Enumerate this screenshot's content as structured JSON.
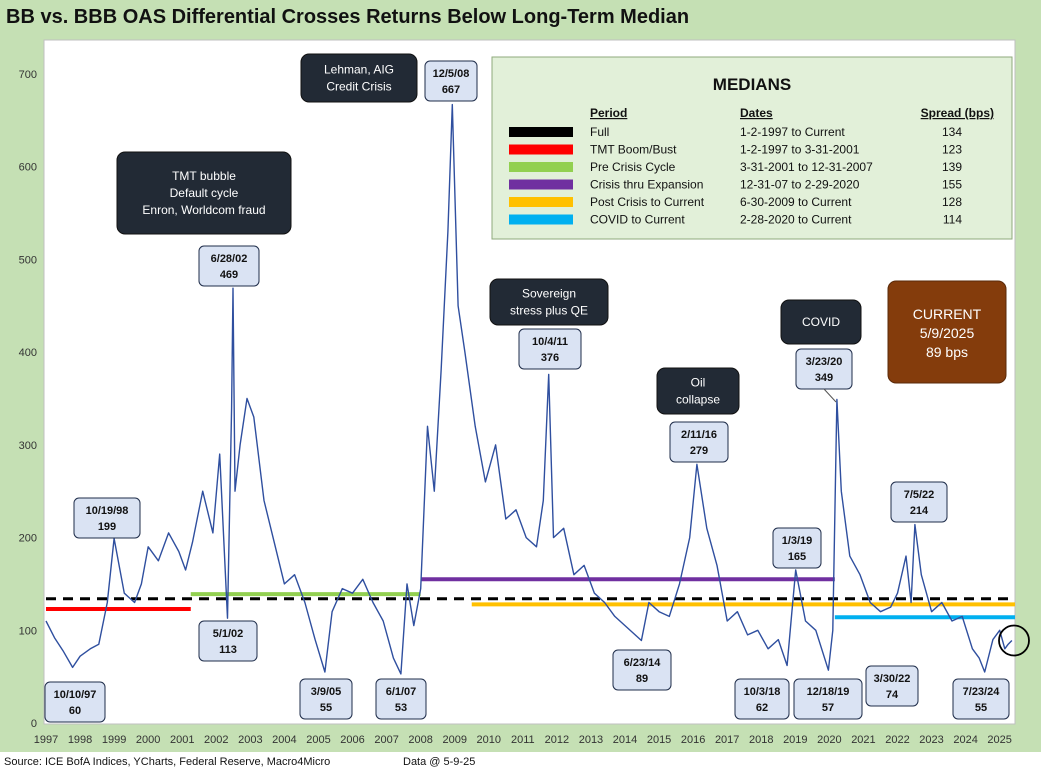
{
  "title": "BB vs. BBB OAS Differential Crosses Returns Below Long-Term Median",
  "footer": {
    "source": "Source: ICE BofA Indices, YCharts, Federal Reserve, Macro4Micro",
    "data_at": "Data @ 5-9-25"
  },
  "medians_box": {
    "title": "MEDIANS",
    "headers": {
      "period": "Period",
      "dates": "Dates",
      "spread": "Spread (bps)"
    },
    "rows": [
      {
        "color": "#000000",
        "dashed": true,
        "period": "Full",
        "dates": "1-2-1997 to Current",
        "spread": "134"
      },
      {
        "color": "#ff0000",
        "dashed": false,
        "period": "TMT Boom/Bust",
        "dates": "1-2-1997 to 3-31-2001",
        "spread": "123"
      },
      {
        "color": "#92d050",
        "dashed": false,
        "period": "Pre Crisis Cycle",
        "dates": "3-31-2001 to 12-31-2007",
        "spread": "139"
      },
      {
        "color": "#7030a0",
        "dashed": false,
        "period": "Crisis thru Expansion",
        "dates": "12-31-07 to 2-29-2020",
        "spread": "155"
      },
      {
        "color": "#ffc000",
        "dashed": false,
        "period": "Post Crisis to Current",
        "dates": "6-30-2009 to Current",
        "spread": "128"
      },
      {
        "color": "#00b0f0",
        "dashed": false,
        "period": "COVID to Current",
        "dates": "2-28-2020 to Current",
        "spread": "114"
      }
    ]
  },
  "current_box": {
    "lines": [
      "CURRENT",
      "5/9/2025",
      "89 bps"
    ],
    "color": "#843c0c"
  },
  "event_boxes": [
    {
      "id": "tmt",
      "lines": [
        "TMT bubble",
        "Default cycle",
        "Enron, Worldcom fraud"
      ]
    },
    {
      "id": "lehman",
      "lines": [
        "Lehman, AIG",
        "Credit Crisis"
      ]
    },
    {
      "id": "sovereign",
      "lines": [
        "Sovereign",
        "stress plus QE"
      ]
    },
    {
      "id": "oil",
      "lines": [
        "Oil",
        "collapse"
      ]
    },
    {
      "id": "covid",
      "lines": [
        "COVID"
      ]
    }
  ],
  "callouts": [
    {
      "date": "10/10/97",
      "value": "60"
    },
    {
      "date": "10/19/98",
      "value": "199"
    },
    {
      "date": "6/28/02",
      "value": "469"
    },
    {
      "date": "5/1/02",
      "value": "113"
    },
    {
      "date": "3/9/05",
      "value": "55"
    },
    {
      "date": "6/1/07",
      "value": "53"
    },
    {
      "date": "12/5/08",
      "value": "667"
    },
    {
      "date": "10/4/11",
      "value": "376"
    },
    {
      "date": "6/23/14",
      "value": "89"
    },
    {
      "date": "2/11/16",
      "value": "279"
    },
    {
      "date": "10/3/18",
      "value": "62"
    },
    {
      "date": "1/3/19",
      "value": "165"
    },
    {
      "date": "12/18/19",
      "value": "57"
    },
    {
      "date": "3/23/20",
      "value": "349"
    },
    {
      "date": "3/30/22",
      "value": "74"
    },
    {
      "date": "7/5/22",
      "value": "214"
    },
    {
      "date": "7/23/24",
      "value": "55"
    }
  ],
  "chart_data": {
    "type": "line",
    "title": "BB vs. BBB OAS Differential Crosses Returns Below Long-Term Median",
    "xlabel": "",
    "ylabel": "",
    "xlim": [
      1997.0,
      2025.45
    ],
    "ylim": [
      0,
      700
    ],
    "y_ticks": [
      0,
      100,
      200,
      300,
      400,
      500,
      600,
      700
    ],
    "x_ticks": [
      "1997",
      "1998",
      "1999",
      "2000",
      "2001",
      "2002",
      "2003",
      "2004",
      "2005",
      "2006",
      "2007",
      "2008",
      "2009",
      "2010",
      "2011",
      "2012",
      "2013",
      "2014",
      "2015",
      "2016",
      "2017",
      "2018",
      "2019",
      "2020",
      "2021",
      "2022",
      "2023",
      "2024",
      "2025"
    ],
    "grid": false,
    "series": [
      {
        "line_color": "#2f4f9f",
        "x": [
          1997.0,
          1997.25,
          1997.5,
          1997.78,
          1998.0,
          1998.3,
          1998.55,
          1998.8,
          1999.0,
          1999.3,
          1999.6,
          1999.8,
          2000.0,
          2000.3,
          2000.6,
          2000.9,
          2001.1,
          2001.3,
          2001.6,
          2001.9,
          2002.1,
          2002.33,
          2002.45,
          2002.49,
          2002.55,
          2002.7,
          2002.9,
          2003.1,
          2003.4,
          2003.7,
          2004.0,
          2004.3,
          2004.6,
          2004.9,
          2005.19,
          2005.4,
          2005.7,
          2006.0,
          2006.3,
          2006.6,
          2006.9,
          2007.2,
          2007.42,
          2007.6,
          2007.8,
          2008.0,
          2008.2,
          2008.4,
          2008.6,
          2008.8,
          2008.93,
          2009.1,
          2009.3,
          2009.6,
          2009.9,
          2010.2,
          2010.5,
          2010.8,
          2011.1,
          2011.4,
          2011.6,
          2011.76,
          2011.9,
          2012.2,
          2012.5,
          2012.8,
          2013.1,
          2013.4,
          2013.7,
          2014.0,
          2014.3,
          2014.48,
          2014.7,
          2015.0,
          2015.3,
          2015.6,
          2015.9,
          2016.11,
          2016.4,
          2016.7,
          2017.0,
          2017.3,
          2017.6,
          2017.9,
          2018.2,
          2018.5,
          2018.76,
          2018.9,
          2019.01,
          2019.3,
          2019.6,
          2019.97,
          2020.1,
          2020.22,
          2020.35,
          2020.6,
          2020.9,
          2021.2,
          2021.5,
          2021.8,
          2022.0,
          2022.25,
          2022.4,
          2022.51,
          2022.7,
          2023.0,
          2023.3,
          2023.6,
          2023.9,
          2024.2,
          2024.4,
          2024.56,
          2024.8,
          2025.0,
          2025.15,
          2025.25,
          2025.36
        ],
        "values": [
          110,
          92,
          78,
          60,
          72,
          80,
          85,
          130,
          199,
          140,
          130,
          150,
          190,
          175,
          205,
          185,
          165,
          195,
          250,
          205,
          290,
          113,
          340,
          469,
          250,
          300,
          350,
          330,
          240,
          195,
          150,
          160,
          130,
          90,
          55,
          120,
          145,
          140,
          155,
          130,
          110,
          70,
          53,
          150,
          105,
          145,
          320,
          250,
          380,
          530,
          667,
          450,
          400,
          320,
          260,
          300,
          220,
          230,
          200,
          190,
          240,
          376,
          200,
          210,
          160,
          170,
          140,
          130,
          115,
          105,
          95,
          89,
          130,
          120,
          115,
          150,
          200,
          279,
          210,
          170,
          110,
          120,
          95,
          100,
          80,
          90,
          62,
          120,
          165,
          110,
          100,
          57,
          100,
          349,
          250,
          180,
          160,
          130,
          120,
          125,
          140,
          180,
          130,
          214,
          160,
          120,
          130,
          110,
          115,
          80,
          70,
          55,
          90,
          100,
          80,
          85,
          89
        ]
      }
    ],
    "median_lines": [
      {
        "label": "Full",
        "value": 134,
        "x_from": 1997.0,
        "x_to": 2025.45,
        "color": "#000000",
        "dashed": true
      },
      {
        "label": "TMT Boom/Bust",
        "value": 123,
        "x_from": 1997.0,
        "x_to": 2001.25,
        "color": "#ff0000"
      },
      {
        "label": "Pre Crisis Cycle",
        "value": 139,
        "x_from": 2001.25,
        "x_to": 2008.0,
        "color": "#92d050"
      },
      {
        "label": "Crisis thru Expansion",
        "value": 155,
        "x_from": 2008.0,
        "x_to": 2020.16,
        "color": "#7030a0"
      },
      {
        "label": "Post Crisis to Current",
        "value": 128,
        "x_from": 2009.5,
        "x_to": 2025.45,
        "color": "#ffc000"
      },
      {
        "label": "COVID to Current",
        "value": 114,
        "x_from": 2020.16,
        "x_to": 2025.45,
        "color": "#00b0f0"
      }
    ]
  }
}
